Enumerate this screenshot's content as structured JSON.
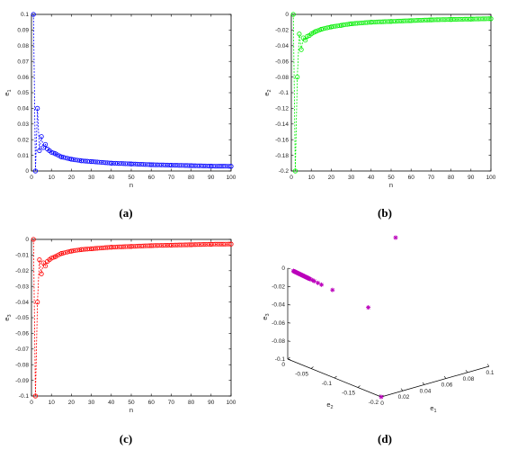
{
  "colors": {
    "a": "#0000ff",
    "b": "#00ee00",
    "c": "#ff0000",
    "d": "#bb00bb"
  },
  "panels": [
    {
      "id": "a",
      "label": "(a)",
      "xlabel": "n",
      "ylabel_main": "e",
      "ylabel_sub": "1",
      "xlim": [
        0,
        100
      ],
      "ylim": [
        0,
        0.1
      ],
      "xticks": [
        "0",
        "10",
        "20",
        "30",
        "40",
        "50",
        "60",
        "70",
        "80",
        "90",
        "100"
      ],
      "yticks": [
        "0",
        "0.01",
        "0.02",
        "0.03",
        "0.04",
        "0.05",
        "0.06",
        "0.07",
        "0.08",
        "0.09",
        "0.1"
      ]
    },
    {
      "id": "b",
      "label": "(b)",
      "xlabel": "n",
      "ylabel_main": "e",
      "ylabel_sub": "2",
      "xlim": [
        0,
        100
      ],
      "ylim": [
        -0.2,
        0
      ],
      "xticks": [
        "0",
        "10",
        "20",
        "30",
        "40",
        "50",
        "60",
        "70",
        "80",
        "90",
        "100"
      ],
      "yticks": [
        "-0.2",
        "-0.18",
        "-0.16",
        "-0.14",
        "-0.12",
        "-0.1",
        "-0.08",
        "-0.06",
        "-0.04",
        "-0.02",
        "0"
      ]
    },
    {
      "id": "c",
      "label": "(c)",
      "xlabel": "n",
      "ylabel_main": "e",
      "ylabel_sub": "3",
      "xlim": [
        0,
        100
      ],
      "ylim": [
        -0.1,
        0
      ],
      "xticks": [
        "0",
        "10",
        "20",
        "30",
        "40",
        "50",
        "60",
        "70",
        "80",
        "90",
        "100"
      ],
      "yticks": [
        "-0.1",
        "-0.09",
        "-0.08",
        "-0.07",
        "-0.06",
        "-0.05",
        "-0.04",
        "-0.03",
        "-0.02",
        "-0.01",
        "0"
      ]
    },
    {
      "id": "d",
      "label": "(d)",
      "zlabel_main": "e",
      "zlabel_sub": "3",
      "xlabel_main": "e",
      "xlabel_sub": "1",
      "ylabel_main": "e",
      "ylabel_sub": "2",
      "zticks": [
        "0",
        "-0.02",
        "-0.04",
        "-0.06",
        "-0.08",
        "-0.1"
      ],
      "xticks": [
        "0",
        "0.02",
        "0.04",
        "0.06",
        "0.08",
        "0.1"
      ],
      "yticks": [
        "0",
        "-0.05",
        "-0.1",
        "-0.15",
        "-0.2"
      ]
    }
  ],
  "chart_data": [
    {
      "type": "line",
      "panel": "a",
      "marker": "circle",
      "color": "#0000ff",
      "x": [
        1,
        2,
        3,
        4,
        5,
        6,
        7,
        8,
        9,
        10,
        12,
        15,
        20,
        25,
        30,
        40,
        50,
        60,
        70,
        80,
        90,
        100
      ],
      "y": [
        0.1,
        0,
        0.04,
        0.013,
        0.022,
        0.015,
        0.017,
        0.014,
        0.013,
        0.012,
        0.011,
        0.009,
        0.0075,
        0.0065,
        0.006,
        0.005,
        0.0045,
        0.004,
        0.0037,
        0.0034,
        0.0031,
        0.003
      ],
      "xlim": [
        0,
        100
      ],
      "ylim": [
        0,
        0.1
      ]
    },
    {
      "type": "line",
      "panel": "b",
      "marker": "circle",
      "color": "#00ee00",
      "x": [
        1,
        2,
        3,
        4,
        5,
        6,
        7,
        8,
        9,
        10,
        12,
        15,
        20,
        25,
        30,
        40,
        50,
        60,
        70,
        80,
        90,
        100
      ],
      "y": [
        0,
        -0.2,
        -0.08,
        -0.025,
        -0.045,
        -0.03,
        -0.033,
        -0.028,
        -0.027,
        -0.025,
        -0.022,
        -0.019,
        -0.016,
        -0.014,
        -0.012,
        -0.01,
        -0.009,
        -0.008,
        -0.007,
        -0.0065,
        -0.006,
        -0.0055
      ],
      "xlim": [
        0,
        100
      ],
      "ylim": [
        -0.2,
        0
      ]
    },
    {
      "type": "line",
      "panel": "c",
      "marker": "circle",
      "color": "#ff0000",
      "x": [
        1,
        2,
        3,
        4,
        5,
        6,
        7,
        8,
        9,
        10,
        12,
        15,
        20,
        25,
        30,
        40,
        50,
        60,
        70,
        80,
        90,
        100
      ],
      "y": [
        0,
        -0.1,
        -0.04,
        -0.013,
        -0.022,
        -0.015,
        -0.017,
        -0.014,
        -0.013,
        -0.012,
        -0.011,
        -0.009,
        -0.0075,
        -0.0065,
        -0.006,
        -0.005,
        -0.0045,
        -0.004,
        -0.0037,
        -0.0034,
        -0.0031,
        -0.003
      ],
      "xlim": [
        0,
        100
      ],
      "ylim": [
        -0.1,
        0
      ]
    },
    {
      "type": "scatter",
      "panel": "d",
      "marker": "asterisk",
      "color": "#bb00bb",
      "e1": [
        0.1,
        0,
        0.04,
        0.022,
        0.017,
        0.015,
        0.013,
        0.012,
        0.011,
        0.009,
        0.0075,
        0.006,
        0.005,
        0.004,
        0.003
      ],
      "e2": [
        0,
        -0.2,
        -0.08,
        -0.045,
        -0.033,
        -0.03,
        -0.027,
        -0.025,
        -0.022,
        -0.019,
        -0.016,
        -0.012,
        -0.01,
        -0.008,
        -0.0055
      ],
      "e3": [
        0,
        -0.1,
        -0.04,
        -0.022,
        -0.017,
        -0.015,
        -0.013,
        -0.012,
        -0.011,
        -0.009,
        -0.0075,
        -0.006,
        -0.005,
        -0.004,
        -0.003
      ]
    }
  ]
}
